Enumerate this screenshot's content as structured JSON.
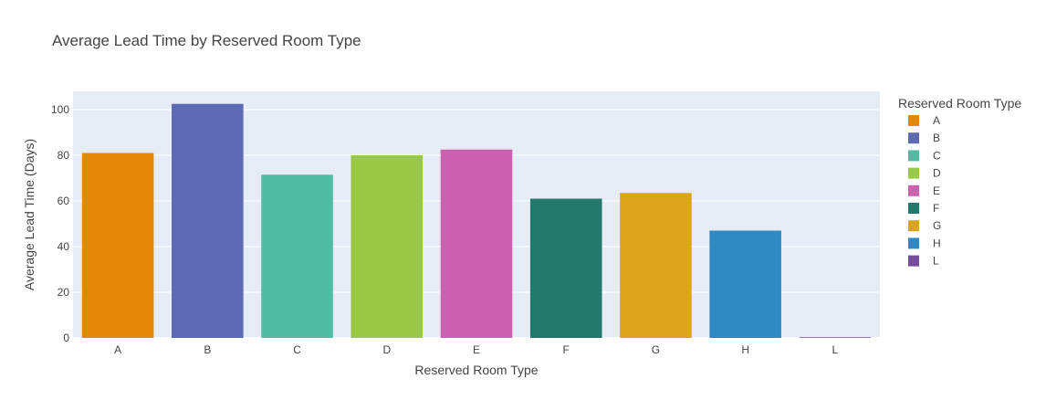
{
  "chart_data": {
    "type": "bar",
    "title": "Average Lead Time by Reserved Room Type",
    "xlabel": "Reserved Room Type",
    "ylabel": "Average Lead Time (Days)",
    "ylim": [
      0,
      108
    ],
    "yticks": [
      0,
      20,
      40,
      60,
      80,
      100
    ],
    "grid": true,
    "legend_title": "Reserved Room Type",
    "legend_position": "right",
    "categories": [
      "A",
      "B",
      "C",
      "D",
      "E",
      "F",
      "G",
      "H",
      "L"
    ],
    "values": [
      81,
      102.5,
      71.5,
      80,
      82.5,
      61,
      63.5,
      47,
      0.3
    ],
    "colors": [
      "#E58606",
      "#5D69B1",
      "#52BCA3",
      "#99C945",
      "#CC61B0",
      "#24796C",
      "#DAA51B",
      "#2F8AC4",
      "#764E9F"
    ],
    "plot_background": "#E5ECF6"
  }
}
